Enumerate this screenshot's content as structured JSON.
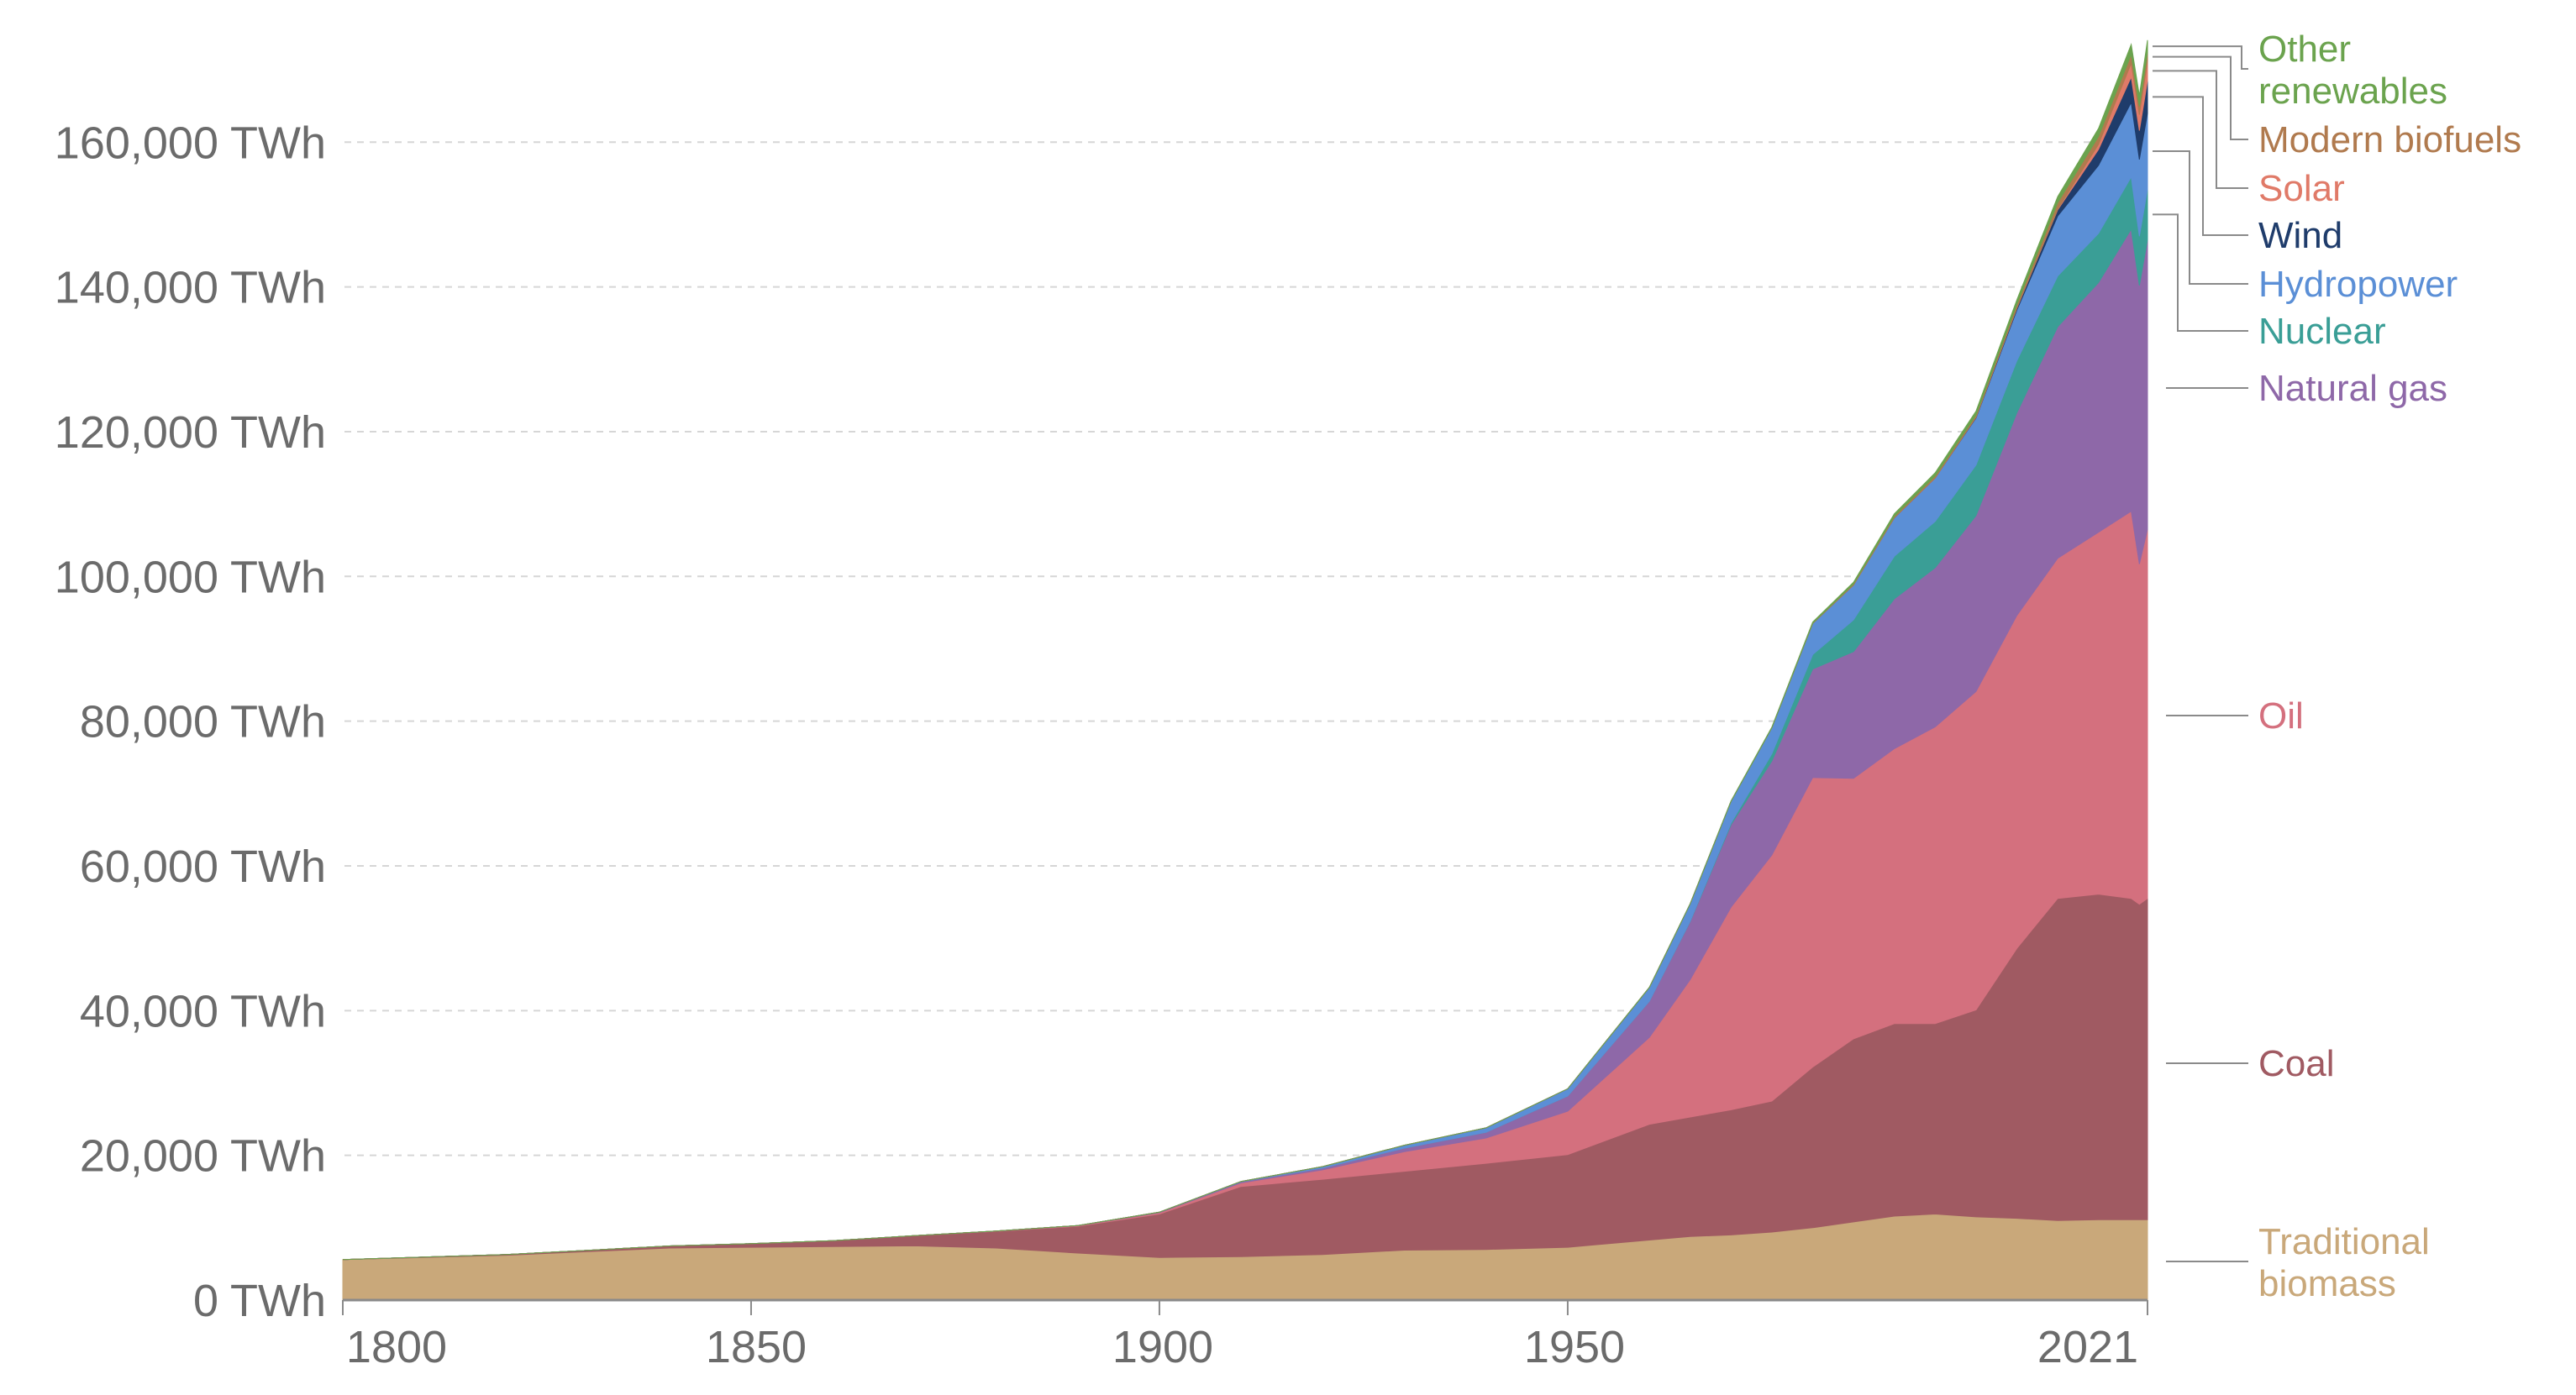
{
  "chart_data": {
    "type": "area",
    "stacked": true,
    "title": "",
    "xlabel": "",
    "ylabel": "",
    "ylim": [
      0,
      175000
    ],
    "xlim": [
      1800,
      2021
    ],
    "y_ticks": [
      0,
      20000,
      40000,
      60000,
      80000,
      100000,
      120000,
      140000,
      160000
    ],
    "y_tick_labels": [
      "0 TWh",
      "20,000 TWh",
      "40,000 TWh",
      "60,000 TWh",
      "80,000 TWh",
      "100,000 TWh",
      "120,000 TWh",
      "140,000 TWh",
      "160,000 TWh"
    ],
    "x_ticks": [
      1800,
      1850,
      1900,
      1950,
      2021
    ],
    "x_tick_labels": [
      "1800",
      "1850",
      "1900",
      "1950",
      "2021"
    ],
    "grid": true,
    "legend_placement": "right (inline labels)",
    "x": [
      1800,
      1810,
      1820,
      1830,
      1840,
      1850,
      1860,
      1870,
      1880,
      1890,
      1900,
      1910,
      1920,
      1930,
      1940,
      1950,
      1960,
      1965,
      1970,
      1975,
      1980,
      1985,
      1990,
      1995,
      2000,
      2005,
      2010,
      2015,
      2019,
      2020,
      2021
    ],
    "series": [
      {
        "name": "Traditional biomass",
        "label_lines": [
          "Traditional",
          "biomass"
        ],
        "color": "#C9A87A",
        "values": [
          5600,
          5900,
          6200,
          6700,
          7200,
          7300,
          7400,
          7500,
          7200,
          6500,
          5900,
          6000,
          6300,
          6900,
          7000,
          7300,
          8300,
          8800,
          9000,
          9400,
          10000,
          10800,
          11600,
          11900,
          11500,
          11300,
          11000,
          11100,
          11100,
          11100,
          11100
        ]
      },
      {
        "name": "Coal",
        "label_lines": [
          "Coal"
        ],
        "color": "#A05A62",
        "values": [
          0,
          50,
          100,
          180,
          280,
          500,
          800,
          1400,
          2300,
          3700,
          6000,
          9700,
          10400,
          10900,
          11900,
          12800,
          16000,
          16500,
          17300,
          18100,
          22200,
          25300,
          26600,
          26300,
          28600,
          37300,
          44500,
          45000,
          44400,
          43600,
          44400
        ]
      },
      {
        "name": "Oil",
        "label_lines": [
          "Oil"
        ],
        "color": "#D4707E",
        "values": [
          0,
          0,
          0,
          0,
          0,
          0,
          0,
          10,
          30,
          70,
          180,
          500,
          1300,
          2700,
          3500,
          6000,
          12000,
          19000,
          28000,
          34000,
          40000,
          36000,
          38000,
          41000,
          44000,
          46000,
          47000,
          50000,
          53500,
          47000,
          51000
        ]
      },
      {
        "name": "Natural gas",
        "label_lines": [
          "Natural gas"
        ],
        "color": "#8E68A8",
        "values": [
          0,
          0,
          0,
          0,
          0,
          0,
          0,
          0,
          5,
          30,
          60,
          150,
          250,
          500,
          800,
          2100,
          5000,
          8000,
          11400,
          13000,
          15000,
          17500,
          20700,
          22000,
          24300,
          28000,
          32000,
          34500,
          39000,
          38500,
          40000
        ]
      },
      {
        "name": "Nuclear",
        "label_lines": [
          "Nuclear"
        ],
        "color": "#3A9E96",
        "values": [
          0,
          0,
          0,
          0,
          0,
          0,
          0,
          0,
          0,
          0,
          0,
          0,
          0,
          0,
          0,
          0,
          5,
          60,
          220,
          1000,
          2000,
          4400,
          5900,
          6400,
          7000,
          7200,
          7000,
          6800,
          7200,
          6800,
          7000
        ]
      },
      {
        "name": "Hydropower",
        "label_lines": [
          "Hydropower"
        ],
        "color": "#5B8FD6",
        "values": [
          0,
          0,
          0,
          0,
          0,
          0,
          0,
          0,
          0,
          0,
          10,
          50,
          200,
          400,
          600,
          1000,
          1900,
          2400,
          3000,
          3600,
          4300,
          4800,
          5300,
          6000,
          6500,
          7000,
          8300,
          9400,
          10300,
          10600,
          10500
        ]
      },
      {
        "name": "Wind",
        "label_lines": [
          "Wind"
        ],
        "color": "#1F3C6B",
        "values": [
          0,
          0,
          0,
          0,
          0,
          0,
          0,
          0,
          0,
          0,
          0,
          0,
          0,
          0,
          0,
          0,
          0,
          0,
          0,
          0,
          0,
          0,
          10,
          15,
          80,
          250,
          850,
          2200,
          3500,
          4000,
          4500
        ]
      },
      {
        "name": "Solar",
        "label_lines": [
          "Solar"
        ],
        "color": "#E07A68",
        "values": [
          0,
          0,
          0,
          0,
          0,
          0,
          0,
          0,
          0,
          0,
          0,
          0,
          0,
          0,
          0,
          0,
          0,
          0,
          0,
          0,
          0,
          0,
          0,
          0,
          2,
          10,
          80,
          700,
          1900,
          2200,
          2700
        ]
      },
      {
        "name": "Modern biofuels",
        "label_lines": [
          "Modern biofuels"
        ],
        "color": "#B07A4E",
        "values": [
          0,
          0,
          0,
          0,
          0,
          0,
          0,
          0,
          0,
          0,
          0,
          0,
          0,
          0,
          0,
          0,
          0,
          0,
          0,
          0,
          50,
          150,
          200,
          250,
          300,
          500,
          900,
          1100,
          1200,
          1150,
          1200
        ]
      },
      {
        "name": "Other renewables",
        "label_lines": [
          "Other",
          "renewables"
        ],
        "color": "#6BA34E",
        "values": [
          0,
          0,
          0,
          0,
          0,
          0,
          0,
          0,
          0,
          0,
          0,
          0,
          0,
          0,
          0,
          0,
          10,
          20,
          50,
          80,
          150,
          250,
          350,
          450,
          550,
          650,
          850,
          1100,
          1400,
          1500,
          1700
        ]
      }
    ]
  }
}
